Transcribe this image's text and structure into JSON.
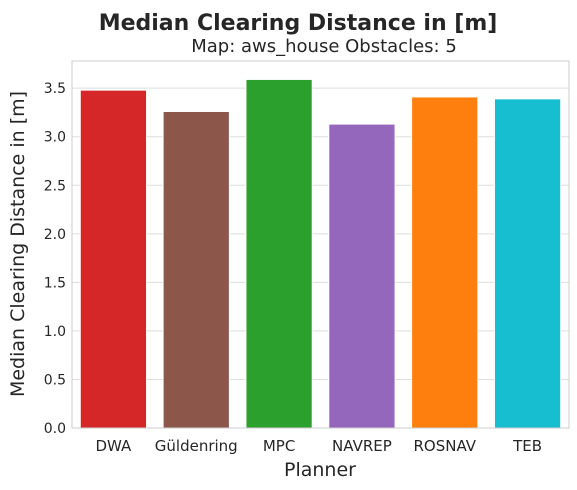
{
  "chart_data": {
    "type": "bar",
    "title": "Median Clearing Distance in [m]",
    "subtitle": "Map: aws_house Obstacles: 5",
    "xlabel": "Planner",
    "ylabel": "Median Clearing Distance in [m]",
    "categories": [
      "DWA",
      "Güldenring",
      "MPC",
      "NAVREP",
      "ROSNAV",
      "TEB"
    ],
    "values": [
      3.48,
      3.26,
      3.59,
      3.13,
      3.41,
      3.39
    ],
    "colors": [
      "#d62728",
      "#8c564b",
      "#2ca02c",
      "#9467bd",
      "#ff7f0e",
      "#17becf"
    ],
    "ylim": [
      0,
      3.78
    ],
    "yticks": [
      "0.0",
      "0.5",
      "1.0",
      "1.5",
      "2.0",
      "2.5",
      "3.0",
      "3.5"
    ],
    "grid": true
  }
}
